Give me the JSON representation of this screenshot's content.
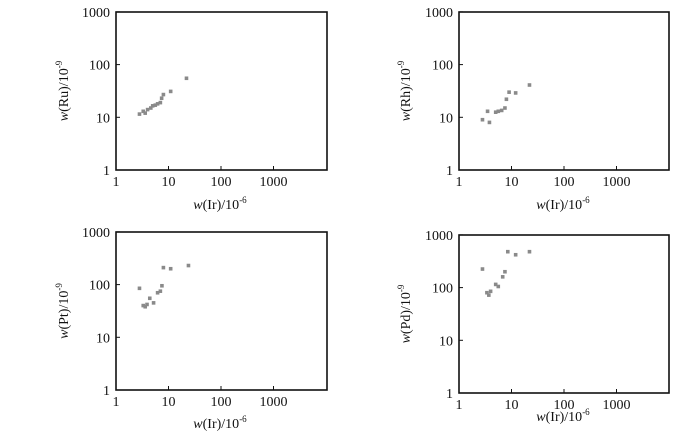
{
  "chart_data": [
    {
      "type": "scatter",
      "xscale": "log",
      "yscale": "log",
      "xlim": [
        1,
        10000
      ],
      "ylim": [
        1,
        1000
      ],
      "xticks": [
        "1",
        "10",
        "100",
        "1000"
      ],
      "yticks": [
        "1",
        "10",
        "100",
        "1000"
      ],
      "xlabel": {
        "italic": "w",
        "rest": "(Ir)/10",
        "sup": "-6"
      },
      "ylabel": {
        "italic": "w",
        "rest": "(Ru)/10",
        "sup": "-9"
      },
      "points": [
        {
          "x": 2.8,
          "y": 11.5
        },
        {
          "x": 3.3,
          "y": 13
        },
        {
          "x": 3.6,
          "y": 12
        },
        {
          "x": 4.0,
          "y": 14
        },
        {
          "x": 4.6,
          "y": 15
        },
        {
          "x": 5.0,
          "y": 16.5
        },
        {
          "x": 5.6,
          "y": 17
        },
        {
          "x": 6.2,
          "y": 18
        },
        {
          "x": 7.0,
          "y": 19
        },
        {
          "x": 7.4,
          "y": 23
        },
        {
          "x": 8.0,
          "y": 27
        },
        {
          "x": 11,
          "y": 31
        },
        {
          "x": 22,
          "y": 55
        }
      ]
    },
    {
      "type": "scatter",
      "xscale": "log",
      "yscale": "log",
      "xlim": [
        1,
        10000
      ],
      "ylim": [
        1,
        1000
      ],
      "xticks": [
        "1",
        "10",
        "100",
        "1000"
      ],
      "yticks": [
        "1",
        "10",
        "100",
        "1000"
      ],
      "xlabel": {
        "italic": "w",
        "rest": "(Ir)/10",
        "sup": "-6"
      },
      "ylabel": {
        "italic": "w",
        "rest": "(Rh)/10",
        "sup": "-9"
      },
      "points": [
        {
          "x": 2.8,
          "y": 9
        },
        {
          "x": 3.5,
          "y": 13
        },
        {
          "x": 3.8,
          "y": 8
        },
        {
          "x": 5.0,
          "y": 12.5
        },
        {
          "x": 5.6,
          "y": 13
        },
        {
          "x": 6.5,
          "y": 13.5
        },
        {
          "x": 7.5,
          "y": 15
        },
        {
          "x": 8.0,
          "y": 22
        },
        {
          "x": 9.0,
          "y": 30
        },
        {
          "x": 12,
          "y": 29
        },
        {
          "x": 22,
          "y": 41
        }
      ]
    },
    {
      "type": "scatter",
      "xscale": "log",
      "yscale": "log",
      "xlim": [
        1,
        10000
      ],
      "ylim": [
        1,
        1000
      ],
      "xticks": [
        "1",
        "10",
        "100",
        "1000"
      ],
      "yticks": [
        "1",
        "10",
        "100",
        "1000"
      ],
      "xlabel": {
        "italic": "w",
        "rest": "(Ir)/10",
        "sup": "-6"
      },
      "ylabel": {
        "italic": "w",
        "rest": "(Pt)/10",
        "sup": "-9"
      },
      "points": [
        {
          "x": 2.8,
          "y": 85
        },
        {
          "x": 3.3,
          "y": 40
        },
        {
          "x": 3.6,
          "y": 38
        },
        {
          "x": 3.9,
          "y": 42
        },
        {
          "x": 4.4,
          "y": 55
        },
        {
          "x": 5.2,
          "y": 45
        },
        {
          "x": 6.2,
          "y": 70
        },
        {
          "x": 7.0,
          "y": 75
        },
        {
          "x": 7.5,
          "y": 95
        },
        {
          "x": 8.0,
          "y": 210
        },
        {
          "x": 11,
          "y": 200
        },
        {
          "x": 24,
          "y": 230
        }
      ]
    },
    {
      "type": "scatter",
      "xscale": "log",
      "yscale": "log",
      "xlim": [
        1,
        10000
      ],
      "ylim": [
        1,
        1000
      ],
      "xticks": [
        "1",
        "10",
        "100",
        "1000"
      ],
      "yticks": [
        "1",
        "10",
        "100",
        "1000"
      ],
      "xlabel": {
        "italic": "w",
        "rest": "(Ir)/10",
        "sup": "-6"
      },
      "ylabel": {
        "italic": "w",
        "rest": "(Pd)/10",
        "sup": "-9"
      },
      "points": [
        {
          "x": 2.8,
          "y": 225
        },
        {
          "x": 3.4,
          "y": 80
        },
        {
          "x": 3.7,
          "y": 72
        },
        {
          "x": 4.0,
          "y": 85
        },
        {
          "x": 5.0,
          "y": 115
        },
        {
          "x": 5.6,
          "y": 105
        },
        {
          "x": 6.8,
          "y": 160
        },
        {
          "x": 7.5,
          "y": 200
        },
        {
          "x": 8.5,
          "y": 480
        },
        {
          "x": 12,
          "y": 420
        },
        {
          "x": 22,
          "y": 480
        }
      ]
    }
  ]
}
